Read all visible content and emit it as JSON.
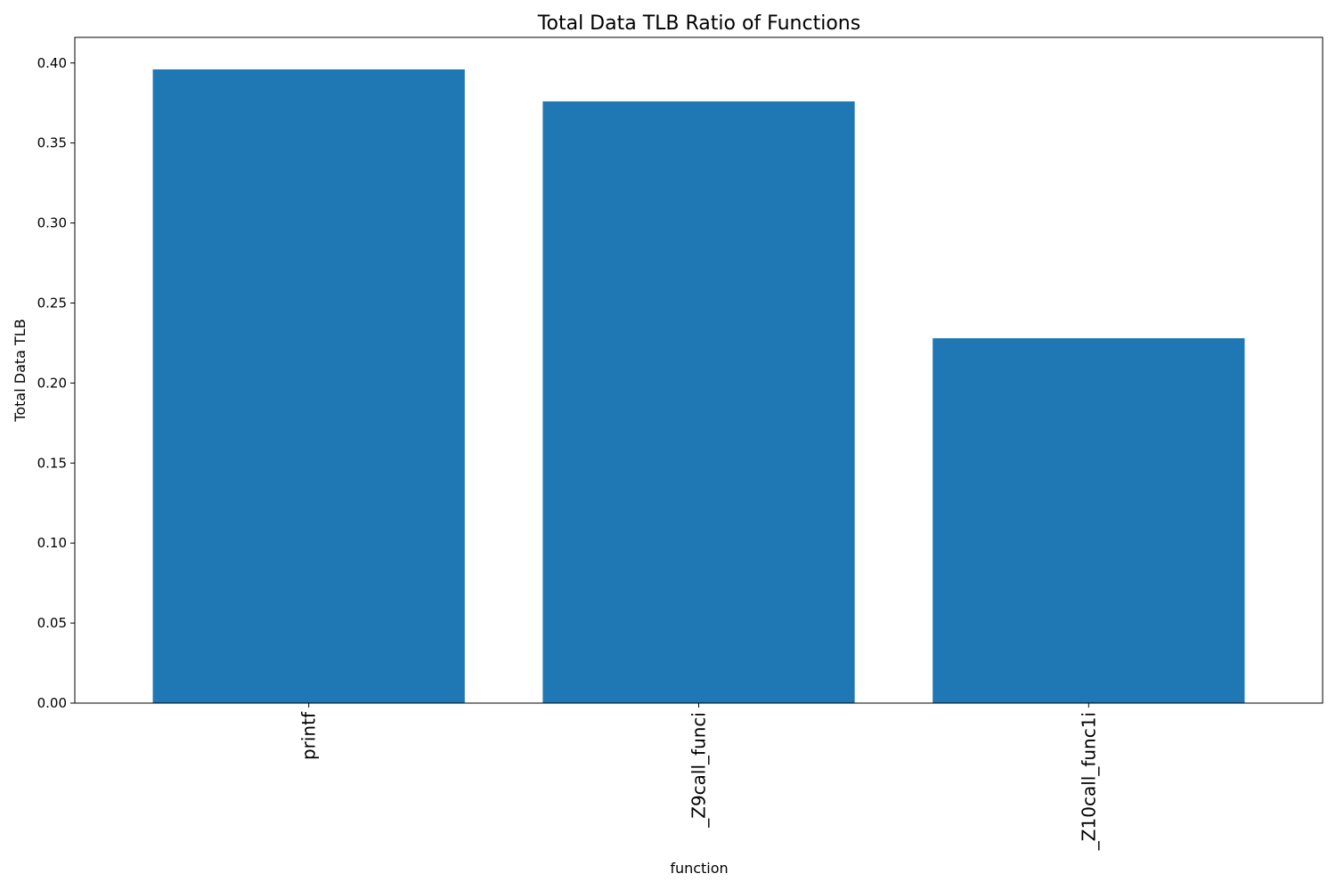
{
  "chart_data": {
    "type": "bar",
    "title": "Total Data TLB Ratio of Functions",
    "xlabel": "function",
    "ylabel": "Total Data TLB",
    "categories": [
      "printf",
      "_Z9call_funci",
      "_Z10call_func1i"
    ],
    "values": [
      0.396,
      0.376,
      0.228
    ],
    "ylim": [
      0,
      0.416
    ],
    "yticks": [
      0.0,
      0.05,
      0.1,
      0.15,
      0.2,
      0.25,
      0.3,
      0.35,
      0.4
    ],
    "ytick_labels": [
      "0.00",
      "0.05",
      "0.10",
      "0.15",
      "0.20",
      "0.25",
      "0.30",
      "0.35",
      "0.40"
    ],
    "bar_color": "#1f77b4",
    "grid": false,
    "legend": false
  }
}
